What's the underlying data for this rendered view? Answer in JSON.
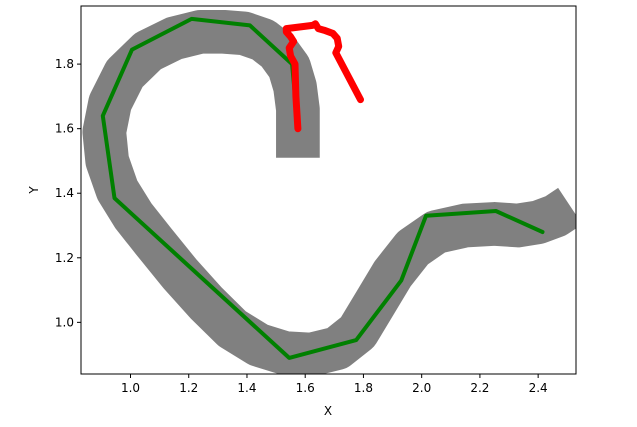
{
  "chart_data": {
    "type": "line",
    "title": "",
    "xlabel": "X",
    "ylabel": "Y",
    "xlim": [
      0.83,
      2.53
    ],
    "ylim": [
      0.84,
      1.98
    ],
    "xticks": [
      "1.0",
      "1.2",
      "1.4",
      "1.6",
      "1.8",
      "2.0",
      "2.2",
      "2.4"
    ],
    "yticks": [
      "1.0",
      "1.2",
      "1.4",
      "1.6",
      "1.8"
    ],
    "grid": false,
    "legend": "none",
    "track": {
      "color": "#808080",
      "width": 0.15,
      "centerline": [
        [
          1.575,
          1.51
        ],
        [
          1.575,
          1.58
        ],
        [
          1.575,
          1.66
        ],
        [
          1.565,
          1.73
        ],
        [
          1.545,
          1.79
        ],
        [
          1.505,
          1.84
        ],
        [
          1.455,
          1.875
        ],
        [
          1.39,
          1.895
        ],
        [
          1.32,
          1.9
        ],
        [
          1.24,
          1.9
        ],
        [
          1.15,
          1.88
        ],
        [
          1.06,
          1.84
        ],
        [
          0.98,
          1.77
        ],
        [
          0.93,
          1.68
        ],
        [
          0.91,
          1.59
        ],
        [
          0.92,
          1.5
        ],
        [
          0.955,
          1.41
        ],
        [
          1.01,
          1.33
        ],
        [
          1.08,
          1.25
        ],
        [
          1.17,
          1.15
        ],
        [
          1.26,
          1.06
        ],
        [
          1.35,
          0.98
        ],
        [
          1.44,
          0.93
        ],
        [
          1.53,
          0.905
        ],
        [
          1.62,
          0.9
        ],
        [
          1.71,
          0.92
        ],
        [
          1.78,
          0.97
        ],
        [
          1.84,
          1.06
        ],
        [
          1.9,
          1.15
        ],
        [
          1.97,
          1.23
        ],
        [
          2.05,
          1.28
        ],
        [
          2.15,
          1.3
        ],
        [
          2.25,
          1.305
        ],
        [
          2.33,
          1.3
        ],
        [
          2.4,
          1.31
        ],
        [
          2.46,
          1.33
        ],
        [
          2.51,
          1.36
        ]
      ]
    },
    "series": [
      {
        "color": "#008000",
        "x": [
          1.575,
          1.555,
          1.41,
          1.21,
          1.005,
          0.905,
          0.945,
          1.545,
          1.775,
          1.93,
          2.015,
          2.255,
          2.415
        ],
        "y": [
          1.6,
          1.8,
          1.92,
          1.94,
          1.845,
          1.64,
          1.385,
          0.89,
          0.945,
          1.13,
          1.33,
          1.345,
          1.28
        ]
      },
      {
        "color": "#ff0000",
        "x": [
          1.575,
          1.568,
          1.565,
          1.55,
          1.545,
          1.56,
          1.55,
          1.535,
          1.535,
          1.625,
          1.635,
          1.645,
          1.665,
          1.695,
          1.71,
          1.715,
          1.705,
          1.79
        ],
        "y": [
          1.6,
          1.7,
          1.8,
          1.825,
          1.85,
          1.87,
          1.885,
          1.9,
          1.91,
          1.92,
          1.925,
          1.91,
          1.905,
          1.895,
          1.88,
          1.855,
          1.835,
          1.69
        ]
      }
    ]
  }
}
